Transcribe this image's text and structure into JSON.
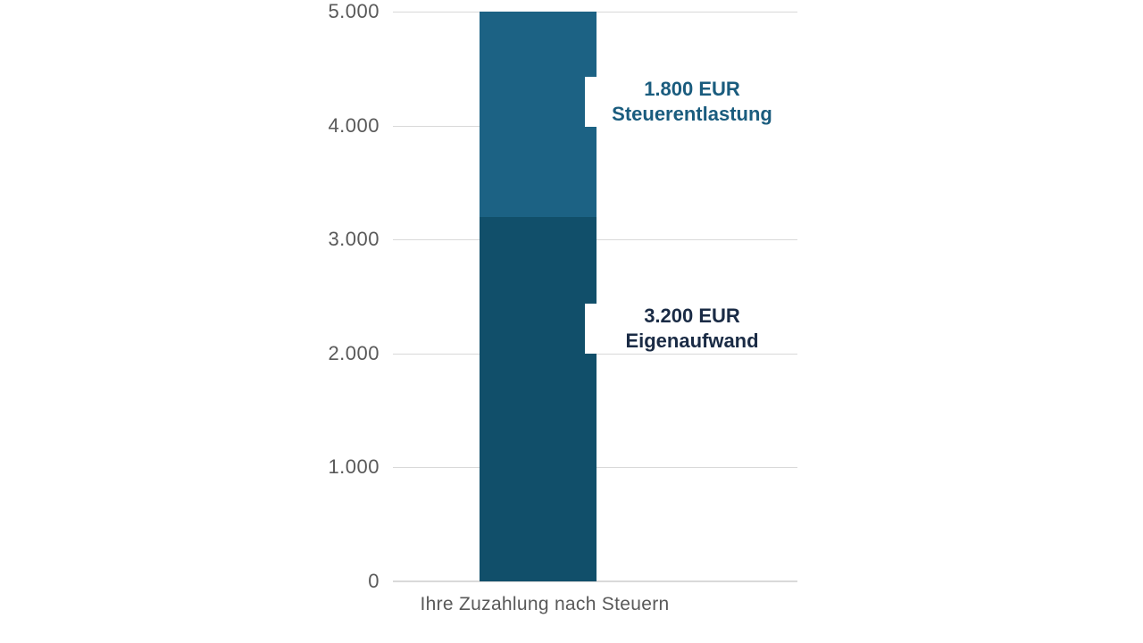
{
  "chart_data": {
    "type": "bar",
    "subtype": "stacked-single-column",
    "title": "",
    "categories": [
      "Ihre Zuzahlung nach Steuern"
    ],
    "series": [
      {
        "name": "Eigenaufwand",
        "values": [
          3200
        ],
        "color": "#114f6a",
        "label_lines": [
          "3.200 EUR",
          "Eigenaufwand"
        ],
        "label_text": "3.200 EUR Eigenaufwand",
        "label_color": "#1a2b45",
        "label_anchor_value": 2220
      },
      {
        "name": "Steuerentlastung",
        "values": [
          1800
        ],
        "color": "#1c6284",
        "label_lines": [
          "1.800 EUR",
          "Steuerentlastung"
        ],
        "label_text": "1.800 EUR Steuerentlastung",
        "label_color": "#1a5c7e",
        "label_anchor_value": 4210
      }
    ],
    "xlabel": "Ihre Zuzahlung nach Steuern",
    "ylabel": "",
    "ylim": [
      0,
      5000
    ],
    "yticks": [
      {
        "value": 0,
        "label": "0"
      },
      {
        "value": 1000,
        "label": "1.000"
      },
      {
        "value": 2000,
        "label": "2.000"
      },
      {
        "value": 3000,
        "label": "3.000"
      },
      {
        "value": 4000,
        "label": "4.000"
      },
      {
        "value": 5000,
        "label": "5.000"
      }
    ],
    "grid": true,
    "gridline_color": "#d9d9d9",
    "axis_line_color": "#d9d9d9",
    "tick_label_color": "#595959",
    "legend": "none",
    "background": "#ffffff"
  }
}
